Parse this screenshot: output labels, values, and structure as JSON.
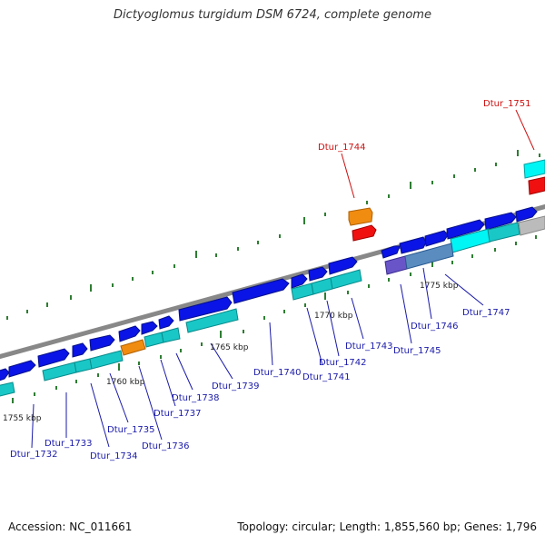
{
  "title": "Dictyoglomus turgidum DSM 6724, complete genome",
  "footer": {
    "accession": "Accession: NC_011661",
    "summary": "Topology: circular; Length: 1,855,560 bp; Genes: 1,796"
  },
  "colors": {
    "background": "#ffffff",
    "backbone": "#888888",
    "cds": "#0a14e6",
    "gene": "#19c7c7",
    "orange_feature": "#f08c10",
    "red_feature": "#f01010",
    "cyan_feature": "#00f5f5",
    "purple_feature": "#6a55c8",
    "steel_feature": "#5a8cc0",
    "gray_feature": "#bbbbbb",
    "tick": "#2e7d32",
    "label_default": "#1a1aaa",
    "label_highlight": "#cc1111"
  },
  "kbp_labels": [
    {
      "text": "1755 kbp",
      "position_kbp": 1755
    },
    {
      "text": "1760 kbp",
      "position_kbp": 1760
    },
    {
      "text": "1765 kbp",
      "position_kbp": 1765
    },
    {
      "text": "1770 kbp",
      "position_kbp": 1770
    },
    {
      "text": "1775 kbp",
      "position_kbp": 1775
    }
  ],
  "gene_labels": [
    {
      "text": "Dtur_1732",
      "color": "blue"
    },
    {
      "text": "Dtur_1733",
      "color": "blue"
    },
    {
      "text": "Dtur_1734",
      "color": "blue"
    },
    {
      "text": "Dtur_1735",
      "color": "blue"
    },
    {
      "text": "Dtur_1736",
      "color": "blue"
    },
    {
      "text": "Dtur_1737",
      "color": "blue"
    },
    {
      "text": "Dtur_1738",
      "color": "blue"
    },
    {
      "text": "Dtur_1739",
      "color": "blue"
    },
    {
      "text": "Dtur_1740",
      "color": "blue"
    },
    {
      "text": "Dtur_1741",
      "color": "blue"
    },
    {
      "text": "Dtur_1742",
      "color": "blue"
    },
    {
      "text": "Dtur_1743",
      "color": "blue"
    },
    {
      "text": "Dtur_1744",
      "color": "red"
    },
    {
      "text": "Dtur_1745",
      "color": "blue"
    },
    {
      "text": "Dtur_1746",
      "color": "blue"
    },
    {
      "text": "Dtur_1747",
      "color": "blue"
    },
    {
      "text": "Dtur_1751",
      "color": "red"
    }
  ]
}
